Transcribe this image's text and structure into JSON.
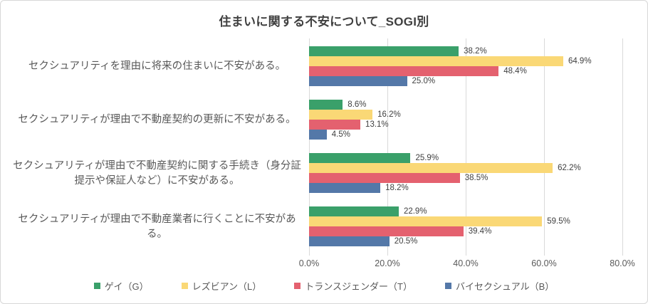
{
  "chart_data": {
    "type": "bar",
    "orientation": "horizontal",
    "title": "住まいに関する不安について_SOGI別",
    "categories": [
      "セクシュアリティを理由に将来の住まいに不安がある。",
      "セクシュアリティが理由で不動産契約の更新に不安がある。",
      "セクシュアリティが理由で不動産契約に関する手続き（身分証提示や保証人など）に不安がある。",
      "セクシュアリティが理由で不動産業者に行くことに不安がある。"
    ],
    "series": [
      {
        "name": "ゲイ（G）",
        "color": "#3AA06A",
        "values": [
          38.2,
          8.6,
          25.9,
          22.9
        ]
      },
      {
        "name": "レズビアン（L）",
        "color": "#FAD876",
        "values": [
          64.9,
          16.2,
          62.2,
          59.5
        ]
      },
      {
        "name": "トランスジェンダー（T）",
        "color": "#E4616F",
        "values": [
          48.4,
          13.1,
          38.5,
          39.4
        ]
      },
      {
        "name": "バイセクシュアル（B）",
        "color": "#5478A8",
        "values": [
          25.0,
          4.5,
          18.2,
          20.5
        ]
      }
    ],
    "value_labels": [
      [
        "38.2%",
        "8.6%",
        "25.9%",
        "22.9%"
      ],
      [
        "64.9%",
        "16.2%",
        "62.2%",
        "59.5%"
      ],
      [
        "48.4%",
        "13.1%",
        "38.5%",
        "39.4%"
      ],
      [
        "25.0%",
        "4.5%",
        "18.2%",
        "20.5%"
      ]
    ],
    "x_ticks": [
      "0.0%",
      "20.0%",
      "40.0%",
      "60.0%",
      "80.0%"
    ],
    "xlim": [
      0,
      80
    ],
    "grid": "vertical",
    "legend_position": "bottom"
  },
  "style": {
    "grid_color": "#D9D9D9",
    "border_color": "#D7D7D7",
    "title_color": "#404040",
    "category_color": "#595959",
    "value_color": "#404040"
  }
}
